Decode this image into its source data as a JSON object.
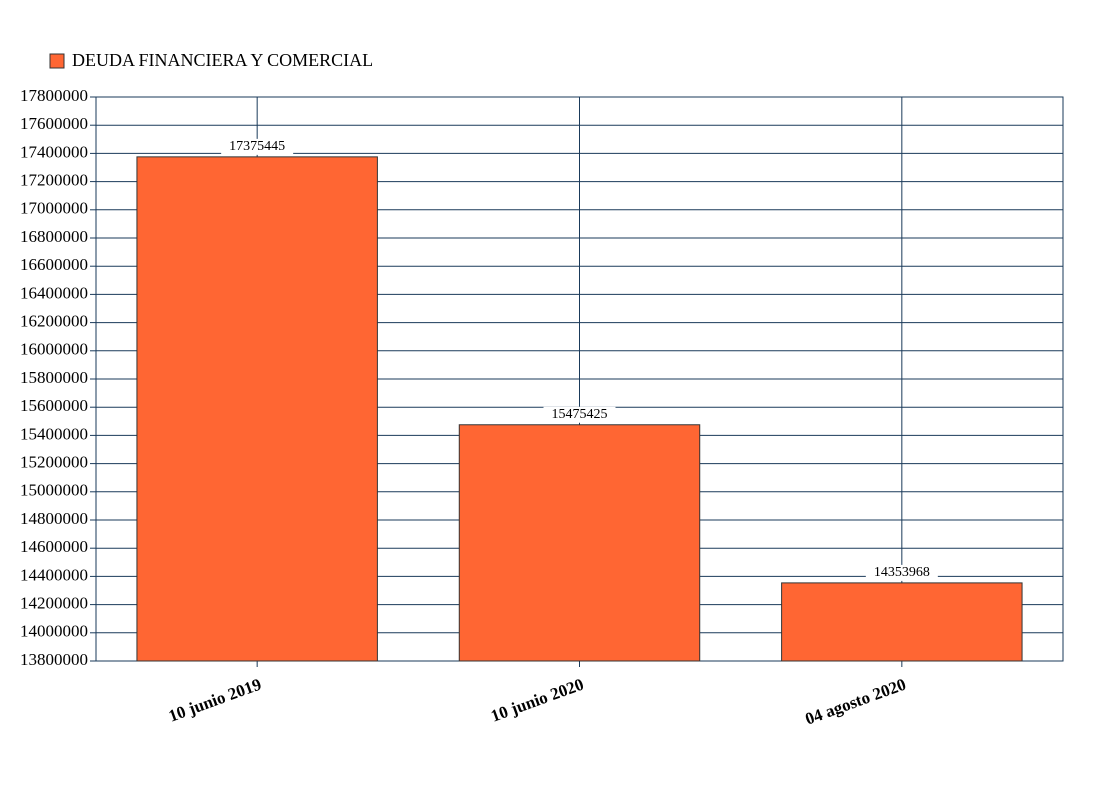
{
  "chart_data": {
    "type": "bar",
    "legend": "DEUDA FINANCIERA Y COMERCIAL",
    "categories": [
      "10 junio 2019",
      "10 junio 2020",
      "04 agosto 2020"
    ],
    "values": [
      17375445,
      15475425,
      14353968
    ],
    "color": "#ff6633",
    "ylim": [
      13800000,
      17800000
    ],
    "yticks": [
      13800000,
      14000000,
      14200000,
      14400000,
      14600000,
      14800000,
      15000000,
      15200000,
      15400000,
      15600000,
      15800000,
      16000000,
      16200000,
      16400000,
      16600000,
      16800000,
      17000000,
      17200000,
      17400000,
      17600000,
      17800000
    ],
    "grid": true
  }
}
